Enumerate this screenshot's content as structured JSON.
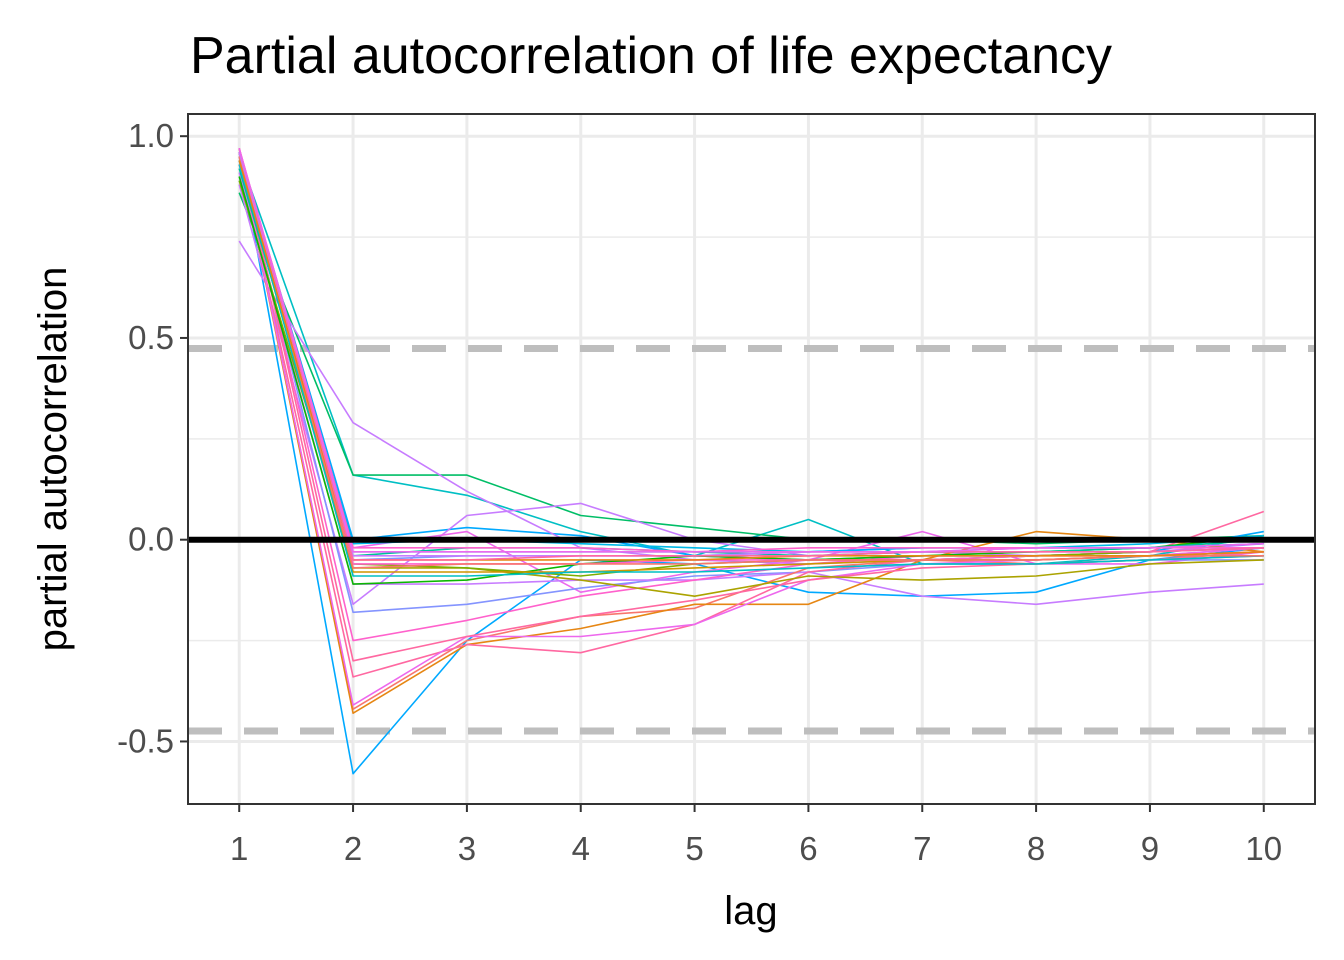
{
  "chart_data": {
    "type": "line",
    "title": "Partial autocorrelation of life expectancy",
    "xlabel": "lag",
    "ylabel": "partial autocorrelation",
    "x": [
      1,
      2,
      3,
      4,
      5,
      6,
      7,
      8,
      9,
      10
    ],
    "xticks": [
      "1",
      "2",
      "3",
      "4",
      "5",
      "6",
      "7",
      "8",
      "9",
      "10"
    ],
    "yticks": [
      {
        "value": 1.0,
        "label": "1.0"
      },
      {
        "value": 0.5,
        "label": "0.5"
      },
      {
        "value": 0.0,
        "label": "0.0"
      },
      {
        "value": -0.5,
        "label": "-0.5"
      }
    ],
    "xlim": [
      0.55,
      10.45
    ],
    "ylim": [
      -0.655,
      1.055
    ],
    "grid": true,
    "legend": "none",
    "reference_lines": [
      {
        "value": 0.0,
        "style": "solid",
        "color": "#000000"
      },
      {
        "value": 0.474,
        "style": "dashed",
        "color": "#bebebe"
      },
      {
        "value": -0.474,
        "style": "dashed",
        "color": "#bebebe"
      }
    ],
    "series": [
      {
        "color": "#00A9FF",
        "values": [
          0.96,
          -0.58,
          -0.25,
          -0.05,
          -0.06,
          -0.13,
          -0.14,
          -0.13,
          -0.05,
          -0.02
        ]
      },
      {
        "color": "#00BFC4",
        "values": [
          0.95,
          0.16,
          0.11,
          0.02,
          -0.04,
          0.05,
          -0.06,
          -0.06,
          -0.04,
          0.01
        ]
      },
      {
        "color": "#00BE67",
        "values": [
          0.86,
          0.16,
          0.16,
          0.06,
          0.03,
          0.0,
          0.0,
          -0.01,
          0.0,
          0.01
        ]
      },
      {
        "color": "#00A9FF",
        "values": [
          0.96,
          0.0,
          0.03,
          0.01,
          -0.04,
          -0.05,
          -0.04,
          -0.04,
          -0.03,
          0.02
        ]
      },
      {
        "color": "#C77CFF",
        "values": [
          0.74,
          0.29,
          0.12,
          -0.02,
          -0.05,
          -0.06,
          -0.05,
          -0.05,
          -0.04,
          -0.02
        ]
      },
      {
        "color": "#C77CFF",
        "values": [
          0.88,
          -0.16,
          0.06,
          0.09,
          0.0,
          -0.04,
          -0.03,
          -0.04,
          -0.03,
          -0.01
        ]
      },
      {
        "color": "#ED68ED",
        "values": [
          0.96,
          -0.02,
          0.02,
          -0.13,
          -0.08,
          -0.05,
          0.02,
          -0.06,
          -0.06,
          -0.03
        ]
      },
      {
        "color": "#8494FF",
        "values": [
          0.94,
          -0.18,
          -0.16,
          -0.12,
          -0.09,
          -0.08,
          -0.06,
          -0.06,
          -0.05,
          -0.05
        ]
      },
      {
        "color": "#C77CFF",
        "values": [
          0.91,
          -0.11,
          -0.11,
          -0.1,
          -0.1,
          -0.08,
          -0.14,
          -0.16,
          -0.13,
          -0.11
        ]
      },
      {
        "color": "#F8766D",
        "values": [
          0.97,
          -0.42,
          -0.25,
          -0.19,
          -0.17,
          -0.07,
          -0.05,
          -0.06,
          -0.05,
          -0.04
        ]
      },
      {
        "color": "#E68613",
        "values": [
          0.96,
          -0.43,
          -0.26,
          -0.22,
          -0.16,
          -0.16,
          -0.05,
          0.02,
          0.0,
          -0.03
        ]
      },
      {
        "color": "#FF61CC",
        "values": [
          0.96,
          -0.25,
          -0.2,
          -0.14,
          -0.1,
          -0.06,
          -0.04,
          -0.04,
          -0.03,
          -0.02
        ]
      },
      {
        "color": "#FF68A1",
        "values": [
          0.95,
          -0.34,
          -0.26,
          -0.28,
          -0.21,
          -0.08,
          -0.05,
          -0.04,
          -0.03,
          0.07
        ]
      },
      {
        "color": "#ED68ED",
        "values": [
          0.96,
          -0.41,
          -0.24,
          -0.24,
          -0.21,
          -0.1,
          -0.06,
          -0.05,
          -0.04,
          -0.02
        ]
      },
      {
        "color": "#FF68A1",
        "values": [
          0.97,
          -0.3,
          -0.24,
          -0.19,
          -0.15,
          -0.1,
          -0.07,
          -0.06,
          -0.05,
          -0.03
        ]
      },
      {
        "color": "#ABA300",
        "values": [
          0.93,
          -0.07,
          -0.07,
          -0.1,
          -0.14,
          -0.09,
          -0.1,
          -0.09,
          -0.06,
          -0.05
        ]
      },
      {
        "color": "#7CAE00",
        "values": [
          0.89,
          -0.06,
          -0.07,
          -0.09,
          -0.06,
          -0.05,
          -0.05,
          -0.04,
          -0.03,
          -0.02
        ]
      },
      {
        "color": "#0CB702",
        "values": [
          0.9,
          -0.11,
          -0.1,
          -0.06,
          -0.04,
          -0.05,
          -0.04,
          -0.03,
          -0.02,
          0.01
        ]
      },
      {
        "color": "#00C19A",
        "values": [
          0.92,
          -0.04,
          -0.02,
          -0.02,
          -0.03,
          -0.04,
          -0.03,
          -0.03,
          -0.02,
          0.0
        ]
      },
      {
        "color": "#00B8E7",
        "values": [
          0.93,
          -0.01,
          0.0,
          -0.01,
          -0.02,
          -0.03,
          -0.02,
          -0.02,
          -0.01,
          0.01
        ]
      },
      {
        "color": "#CD9600",
        "values": [
          0.95,
          -0.08,
          -0.08,
          -0.08,
          -0.07,
          -0.06,
          -0.05,
          -0.05,
          -0.04,
          -0.03
        ]
      },
      {
        "color": "#8494FF",
        "values": [
          0.95,
          -0.05,
          -0.04,
          -0.04,
          -0.04,
          -0.03,
          -0.03,
          -0.02,
          -0.02,
          -0.01
        ]
      },
      {
        "color": "#00A9FF",
        "values": [
          0.96,
          -0.03,
          -0.03,
          -0.03,
          -0.03,
          -0.03,
          -0.02,
          -0.02,
          -0.02,
          -0.01
        ]
      },
      {
        "color": "#00BFC4",
        "values": [
          0.94,
          -0.09,
          -0.09,
          -0.08,
          -0.08,
          -0.07,
          -0.06,
          -0.06,
          -0.05,
          -0.04
        ]
      },
      {
        "color": "#FF61CC",
        "values": [
          0.96,
          -0.06,
          -0.06,
          -0.06,
          -0.05,
          -0.05,
          -0.05,
          -0.04,
          -0.04,
          -0.03
        ]
      },
      {
        "color": "#F8766D",
        "values": [
          0.95,
          -0.07,
          -0.06,
          -0.06,
          -0.06,
          -0.05,
          -0.05,
          -0.05,
          -0.04,
          -0.04
        ]
      },
      {
        "color": "#E68613",
        "values": [
          0.94,
          -0.05,
          -0.05,
          -0.05,
          -0.05,
          -0.04,
          -0.04,
          -0.04,
          -0.04,
          -0.03
        ]
      },
      {
        "color": "#C77CFF",
        "values": [
          0.96,
          -0.04,
          -0.04,
          -0.04,
          -0.04,
          -0.03,
          -0.03,
          -0.03,
          -0.03,
          -0.02
        ]
      },
      {
        "color": "#FF61CC",
        "values": [
          0.97,
          -0.02,
          -0.02,
          -0.02,
          -0.03,
          -0.02,
          -0.02,
          -0.02,
          -0.02,
          -0.02
        ]
      },
      {
        "color": "#FF68A1",
        "values": [
          0.97,
          -0.05,
          -0.05,
          -0.04,
          -0.04,
          -0.04,
          -0.03,
          -0.03,
          -0.03,
          -0.02
        ]
      },
      {
        "color": "#ED68ED",
        "values": [
          0.97,
          -0.03,
          -0.03,
          -0.03,
          -0.03,
          -0.03,
          -0.03,
          -0.02,
          -0.02,
          -0.01
        ]
      }
    ]
  }
}
